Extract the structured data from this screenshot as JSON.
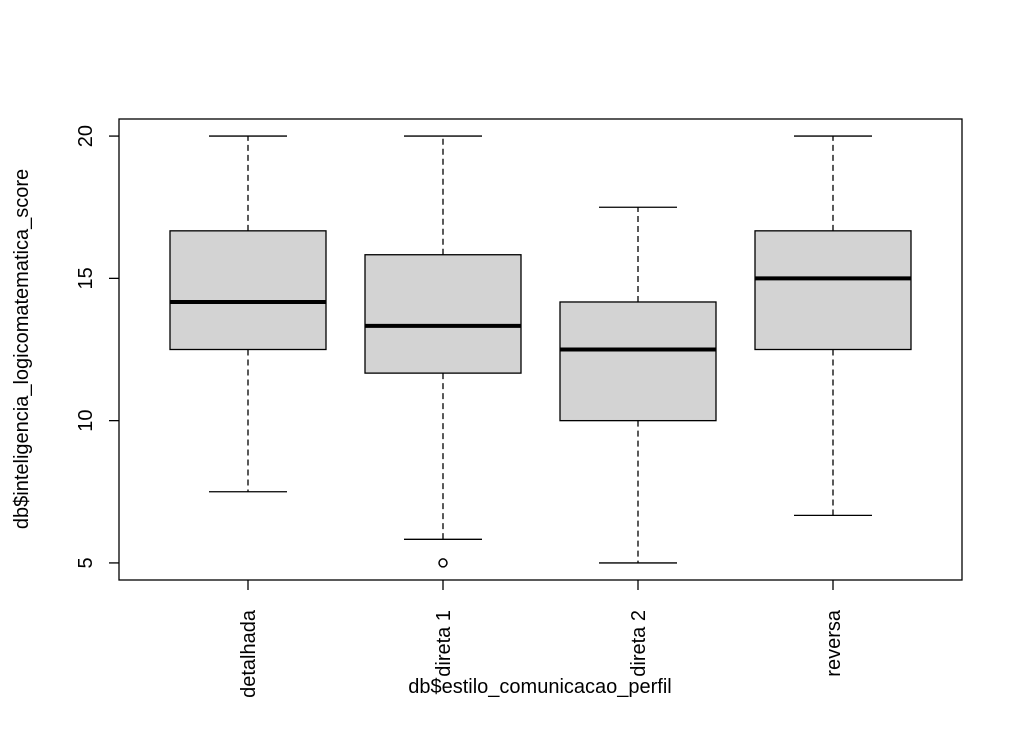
{
  "chart_data": {
    "type": "box",
    "xlabel": "db$estilo_comunicacao_perfil",
    "ylabel": "db$inteligencia_logicomatematica_score",
    "categories": [
      "detalhada",
      "direta 1",
      "direta 2",
      "reversa"
    ],
    "ylim": [
      4.4,
      20.6
    ],
    "yticks": [
      "5",
      "10",
      "15",
      "20"
    ],
    "grid": false,
    "boxes": [
      {
        "name": "detalhada",
        "min": 7.5,
        "q1": 12.5,
        "median": 14.17,
        "q3": 16.67,
        "max": 20,
        "outliers": []
      },
      {
        "name": "direta 1",
        "min": 5.83,
        "q1": 11.67,
        "median": 13.33,
        "q3": 15.83,
        "max": 20,
        "outliers": [
          5
        ]
      },
      {
        "name": "direta 2",
        "min": 5,
        "q1": 10,
        "median": 12.5,
        "q3": 14.17,
        "max": 17.5,
        "outliers": []
      },
      {
        "name": "reversa",
        "min": 6.67,
        "q1": 12.5,
        "median": 15,
        "q3": 16.67,
        "max": 20,
        "outliers": []
      }
    ]
  }
}
